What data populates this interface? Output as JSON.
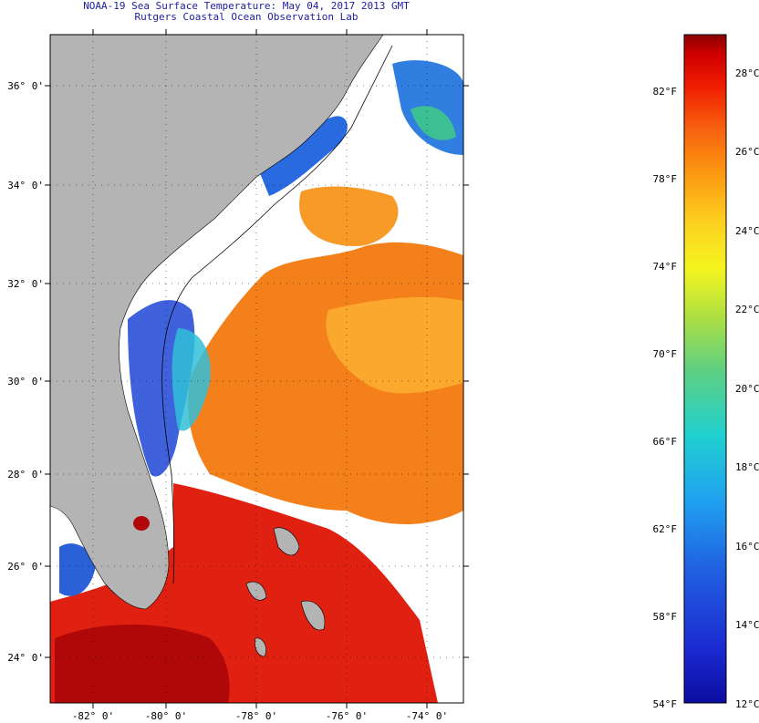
{
  "header": {
    "title": "NOAA-19 Sea Surface Temperature:  May 04, 2017 2013 GMT",
    "subtitle": "Rutgers Coastal Ocean Observation Lab"
  },
  "map": {
    "lat_ticks": [
      "36° 0'",
      "34° 0'",
      "32° 0'",
      "30° 0'",
      "28° 0'",
      "26° 0'",
      "24° 0'"
    ],
    "lon_ticks": [
      "-82° 0'",
      "-80° 0'",
      "-78° 0'",
      "-76° 0'",
      "-74° 0'"
    ],
    "colors": {
      "land": "#b4b4b4",
      "cloud": "#ffffff",
      "warm": "#e82a10",
      "mid": "#f39020",
      "cool": "#2a40d8"
    }
  },
  "colorbar": {
    "f_labels": [
      "82°F",
      "78°F",
      "74°F",
      "70°F",
      "66°F",
      "62°F",
      "58°F",
      "54°F"
    ],
    "c_labels": [
      "28°C",
      "26°C",
      "24°C",
      "22°C",
      "20°C",
      "18°C",
      "16°C",
      "14°C",
      "12°C"
    ],
    "colors": [
      "#8a0000",
      "#d00000",
      "#f02000",
      "#f86010",
      "#fb9a10",
      "#fcd020",
      "#f5f520",
      "#b0e040",
      "#60d080",
      "#20d0d0",
      "#20a0f0",
      "#2060e0",
      "#1a2ad0",
      "#0c0ca0"
    ]
  }
}
